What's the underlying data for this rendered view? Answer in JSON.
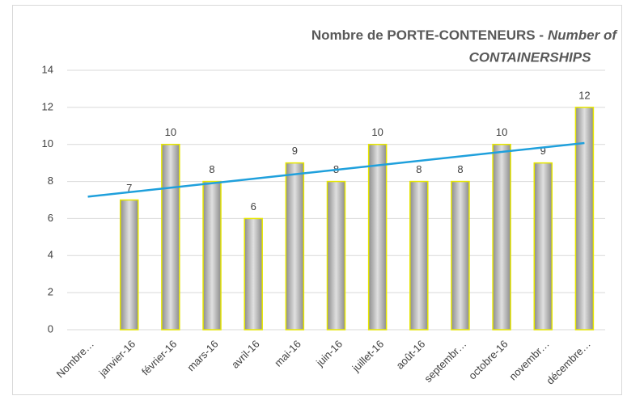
{
  "chart_data": {
    "type": "bar",
    "title": "Nombre de PORTE-CONTENEURS -",
    "title_en": [
      "Number of",
      "CONTAINERSHIPS"
    ],
    "categories": [
      "Nombre…",
      "janvier-16",
      "février-16",
      "mars-16",
      "avril-16",
      "mai-16",
      "juin-16",
      "juillet-16",
      "août-16",
      "septembr…",
      "octobre-16",
      "novembr…",
      "décembre…"
    ],
    "values": [
      null,
      7,
      10,
      8,
      6,
      9,
      8,
      10,
      8,
      8,
      10,
      9,
      12
    ],
    "color": "#a6a6a6",
    "edge_color": "#e6e600",
    "trendline": {
      "type": "linear",
      "color": "#1fa0dc"
    },
    "ylim": [
      0,
      14
    ],
    "yticks": [
      0,
      2,
      4,
      6,
      8,
      10,
      12,
      14
    ],
    "grid": true
  }
}
